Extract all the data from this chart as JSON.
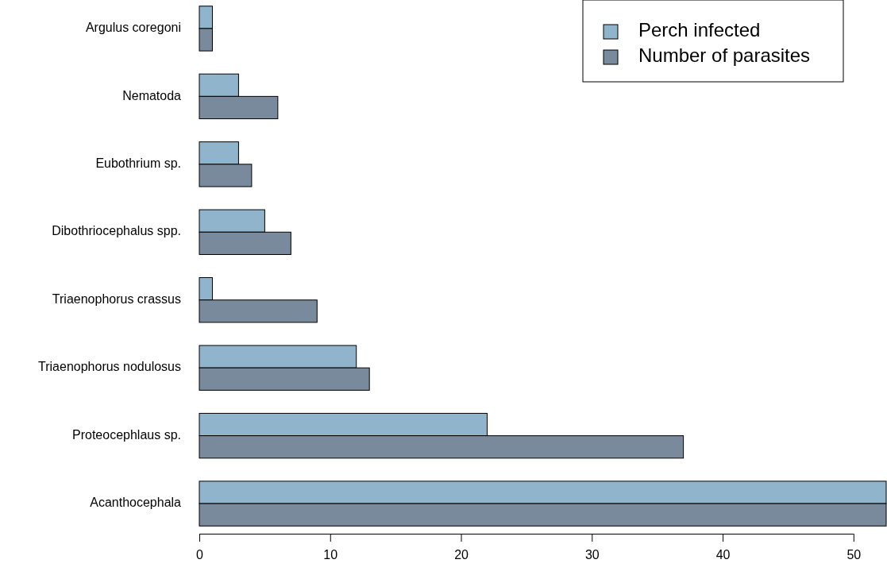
{
  "chart_data": {
    "type": "bar",
    "orientation": "horizontal",
    "categories": [
      "Argulus coregoni",
      "Nematoda",
      "Eubothrium sp.",
      "Dibothriocephalus spp.",
      "Triaenophorus crassus",
      "Triaenophorus nodulosus",
      "Proteocephlaus sp.",
      "Acanthocephala"
    ],
    "series": [
      {
        "name": "Perch infected",
        "color": "#8fb4cc",
        "values": [
          1,
          3,
          3,
          5,
          1,
          12,
          22,
          52.5
        ]
      },
      {
        "name": "Number of parasites",
        "color": "#788a9b",
        "values": [
          1,
          6,
          4,
          7,
          9,
          13,
          37,
          52.5
        ]
      }
    ],
    "xlim": [
      0,
      52.5
    ],
    "xticks": [
      0,
      10,
      20,
      30,
      40,
      50
    ],
    "grid": false,
    "legend": "top right"
  }
}
